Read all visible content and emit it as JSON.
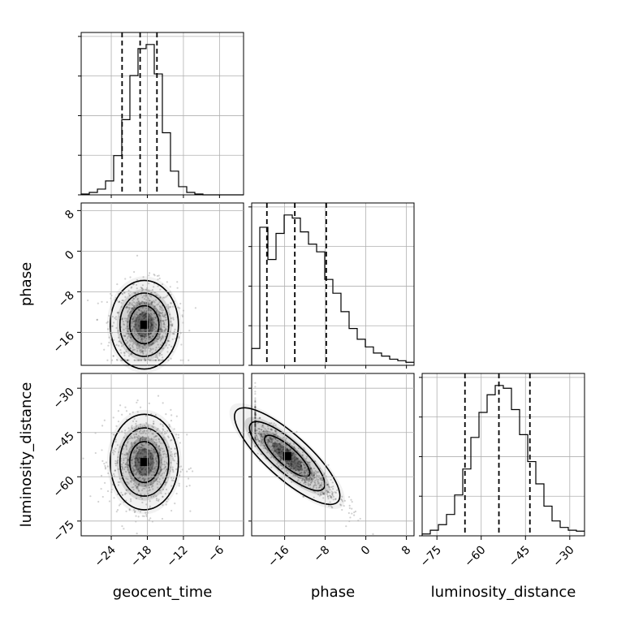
{
  "chart_data": {
    "type": "corner",
    "parameters": [
      "geocent_time",
      "phase",
      "luminosity_distance"
    ],
    "axes": {
      "geocent_time": {
        "label": "geocent_time",
        "range": [
          -29,
          -2
        ],
        "ticks": [
          -24,
          -18,
          -12,
          -6
        ],
        "tick_labels": [
          "−24",
          "−18",
          "−12",
          "−6"
        ]
      },
      "phase": {
        "label": "phase",
        "range": [
          -22.5,
          9.5
        ],
        "ticks": [
          -16,
          -8,
          0,
          8
        ],
        "tick_labels": [
          "−16",
          "−8",
          "0",
          "8"
        ]
      },
      "luminosity_distance": {
        "label": "luminosity_distance",
        "range": [
          -80,
          -25
        ],
        "ticks": [
          -75,
          -60,
          -45,
          -30
        ],
        "tick_labels": [
          "−75",
          "−60",
          "−45",
          "−30"
        ]
      }
    },
    "row_tick_labels": {
      "phase": [
        "8",
        "0",
        "−8",
        "−16"
      ],
      "luminosity_distance": [
        "−30",
        "−45",
        "−60",
        "−75"
      ]
    },
    "histograms": {
      "geocent_time": {
        "bin_edges": [
          -29,
          -27.65,
          -26.3,
          -24.95,
          -23.6,
          -22.25,
          -20.9,
          -19.55,
          -18.2,
          -16.85,
          -15.5,
          -14.15,
          -12.8,
          -11.45,
          -10.1,
          -8.75,
          -7.4,
          -6.05,
          -4.7,
          -3.35,
          -2
        ],
        "counts": [
          1,
          3,
          7,
          17,
          48,
          92,
          146,
          179,
          184,
          148,
          76,
          29,
          10,
          3,
          1,
          0,
          0,
          0,
          0,
          0
        ],
        "quantiles": [
          -22.2,
          -19.2,
          -16.4
        ]
      },
      "phase": {
        "bin_edges": [
          -22.5,
          -20.9,
          -19.3,
          -17.7,
          -16.1,
          -14.5,
          -12.9,
          -11.3,
          -9.7,
          -8.1,
          -6.5,
          -4.9,
          -3.3,
          -1.7,
          -0.1,
          1.5,
          3.1,
          4.7,
          6.3,
          7.9,
          9.5
        ],
        "counts": [
          11,
          90,
          69,
          86,
          98,
          96,
          87,
          79,
          74,
          56,
          47,
          35,
          24,
          17,
          12,
          8,
          6,
          4,
          3,
          2
        ],
        "quantiles": [
          -19.5,
          -14.0,
          -7.8
        ]
      },
      "luminosity_distance": {
        "bin_edges": [
          -80,
          -77.25,
          -74.5,
          -71.75,
          -69,
          -66.25,
          -63.5,
          -60.75,
          -58,
          -55.25,
          -52.5,
          -49.75,
          -47,
          -44.25,
          -41.5,
          -38.75,
          -36,
          -33.25,
          -30.5,
          -27.75,
          -25
        ],
        "counts": [
          2,
          6,
          12,
          23,
          44,
          72,
          106,
          133,
          152,
          162,
          159,
          136,
          109,
          80,
          56,
          32,
          16,
          9,
          6,
          5
        ],
        "quantiles": [
          -65.5,
          -54.0,
          -43.5
        ]
      }
    },
    "joint_peaks": {
      "geocent_time__phase": {
        "x": -18.5,
        "y": -14.5
      },
      "geocent_time__luminosity_distance": {
        "x": -18.5,
        "y": -55.0
      },
      "phase__luminosity_distance": {
        "x": -15.5,
        "y": -53.0
      }
    },
    "grid": true,
    "title": ""
  }
}
